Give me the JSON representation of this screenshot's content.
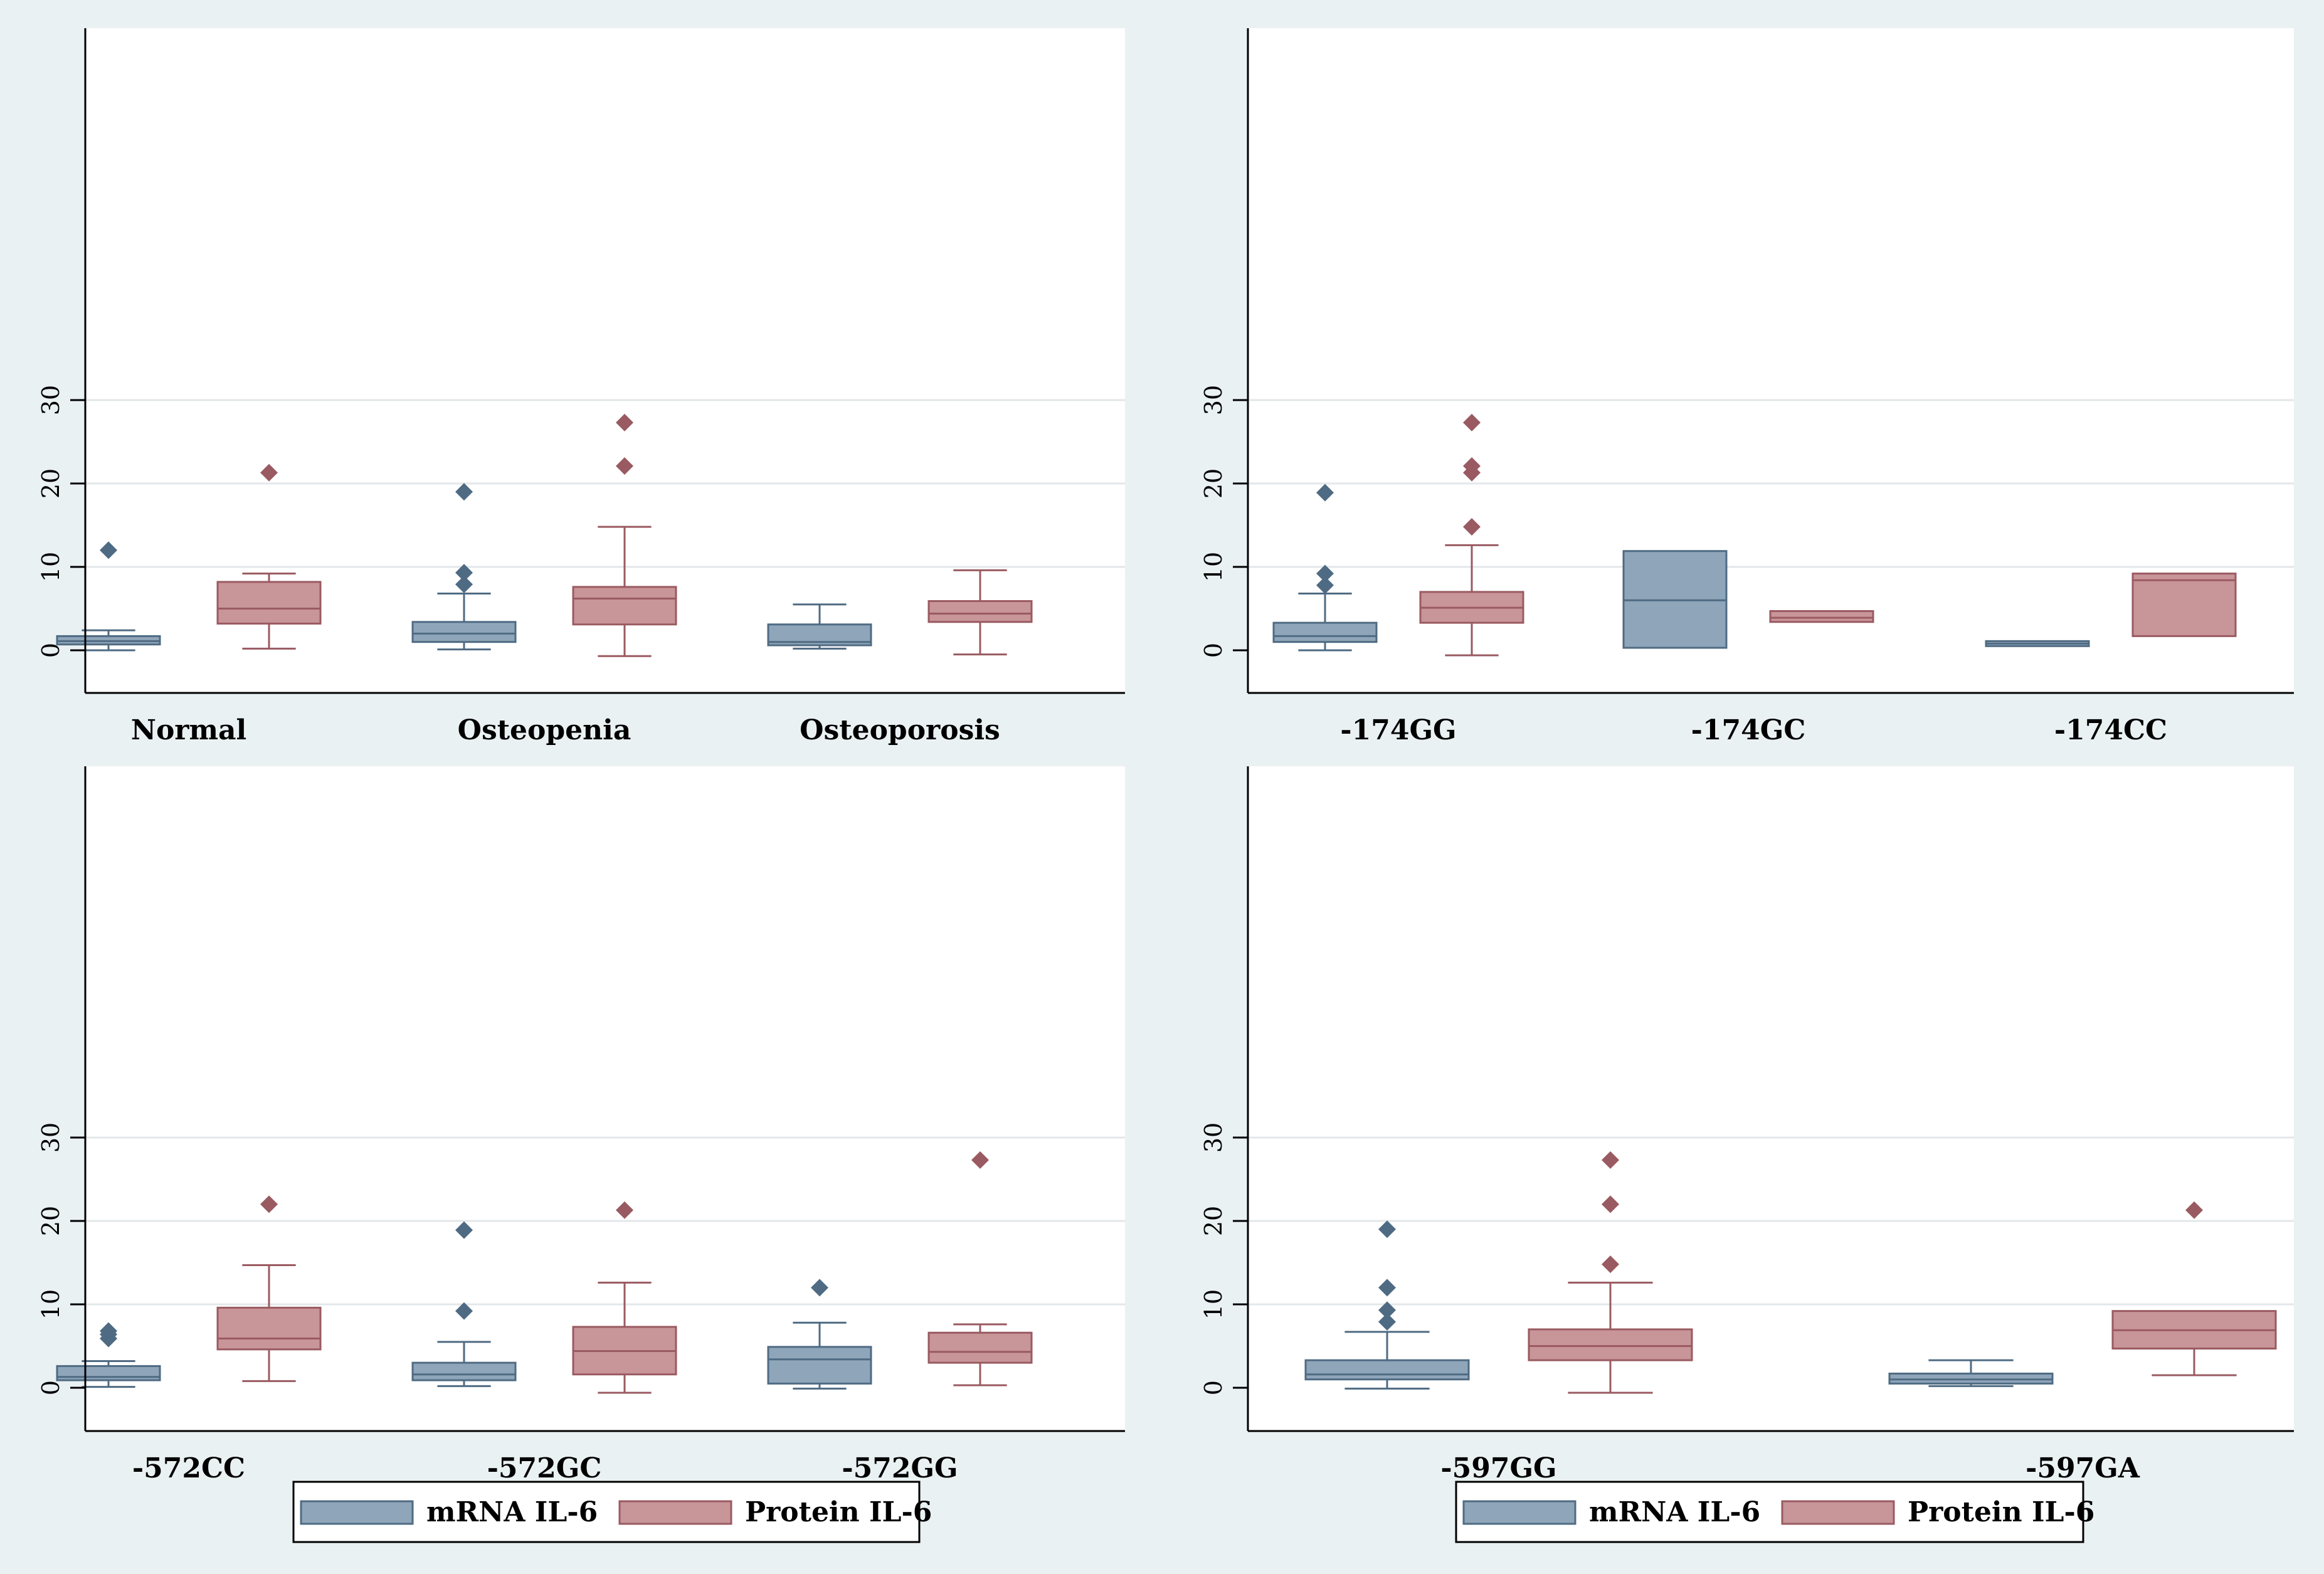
{
  "colors": {
    "background": "#eaf1f3",
    "panel": "#ffffff",
    "grid": "#e3e7ea",
    "mrna_fill": "#8fa5b9",
    "mrna_line": "#4f6b83",
    "protein_fill": "#c89599",
    "protein_line": "#9a5a61"
  },
  "chart_data": [
    {
      "type": "box",
      "ylim": [
        -2,
        32
      ],
      "yticks": [
        "0",
        "10",
        "20",
        "30"
      ],
      "legend": "none",
      "grid": true,
      "categories": [
        "Normal",
        "Osteopenia",
        "Osteoporosis"
      ],
      "series": [
        {
          "name": "mRNA IL-6",
          "stats": [
            {
              "whisker_low": 0.0,
              "q1": 0.7,
              "median": 1.1,
              "q3": 1.7,
              "whisker_high": 2.4,
              "outliers": [
                12.0
              ]
            },
            {
              "whisker_low": 0.1,
              "q1": 1.0,
              "median": 2.0,
              "q3": 3.4,
              "whisker_high": 6.8,
              "outliers": [
                7.9,
                9.3,
                19.0
              ]
            },
            {
              "whisker_low": 0.2,
              "q1": 0.6,
              "median": 1.0,
              "q3": 3.1,
              "whisker_high": 5.5,
              "outliers": []
            }
          ]
        },
        {
          "name": "Protein IL-6",
          "stats": [
            {
              "whisker_low": 0.2,
              "q1": 3.2,
              "median": 5.0,
              "q3": 8.2,
              "whisker_high": 9.2,
              "outliers": [
                21.3
              ]
            },
            {
              "whisker_low": -0.7,
              "q1": 3.1,
              "median": 6.2,
              "q3": 7.6,
              "whisker_high": 14.8,
              "outliers": [
                22.1,
                27.3
              ]
            },
            {
              "whisker_low": -0.5,
              "q1": 3.4,
              "median": 4.4,
              "q3": 5.9,
              "whisker_high": 9.6,
              "outliers": []
            }
          ]
        }
      ]
    },
    {
      "type": "box",
      "ylim": [
        -2,
        32
      ],
      "yticks": [
        "0",
        "10",
        "20",
        "30"
      ],
      "legend": "none",
      "grid": true,
      "categories": [
        "-174GG",
        "-174GC",
        "-174CC"
      ],
      "series": [
        {
          "name": "mRNA IL-6",
          "stats": [
            {
              "whisker_low": 0.0,
              "q1": 1.0,
              "median": 1.7,
              "q3": 3.3,
              "whisker_high": 6.8,
              "outliers": [
                7.8,
                9.2,
                18.9
              ]
            },
            {
              "whisker_low": 0.3,
              "q1": 0.3,
              "median": 6.0,
              "q3": 11.9,
              "whisker_high": 11.9,
              "outliers": []
            },
            {
              "whisker_low": 0.5,
              "q1": 0.5,
              "median": 0.8,
              "q3": 1.1,
              "whisker_high": 1.1,
              "outliers": []
            }
          ]
        },
        {
          "name": "Protein IL-6",
          "stats": [
            {
              "whisker_low": -0.6,
              "q1": 3.3,
              "median": 5.1,
              "q3": 7.0,
              "whisker_high": 12.6,
              "outliers": [
                14.8,
                21.3,
                22.1,
                27.3
              ]
            },
            {
              "whisker_low": 3.4,
              "q1": 3.4,
              "median": 3.9,
              "q3": 4.7,
              "whisker_high": 4.7,
              "outliers": []
            },
            {
              "whisker_low": 1.7,
              "q1": 1.7,
              "median": 8.4,
              "q3": 9.2,
              "whisker_high": 9.2,
              "outliers": []
            }
          ]
        }
      ]
    },
    {
      "type": "box",
      "ylim": [
        -2,
        32
      ],
      "yticks": [
        "0",
        "10",
        "20",
        "30"
      ],
      "legend": "bottom",
      "grid": true,
      "categories": [
        "-572CC",
        "-572GC",
        "-572GG"
      ],
      "legend_labels": [
        "mRNA IL-6",
        "Protein IL-6"
      ],
      "series": [
        {
          "name": "mRNA IL-6",
          "stats": [
            {
              "whisker_low": 0.1,
              "q1": 0.9,
              "median": 1.3,
              "q3": 2.6,
              "whisker_high": 3.2,
              "outliers": [
                5.9,
                6.4,
                6.8
              ]
            },
            {
              "whisker_low": 0.2,
              "q1": 0.9,
              "median": 1.6,
              "q3": 3.0,
              "whisker_high": 5.5,
              "outliers": [
                9.2,
                18.9
              ]
            },
            {
              "whisker_low": -0.1,
              "q1": 0.5,
              "median": 3.4,
              "q3": 4.9,
              "whisker_high": 7.8,
              "outliers": [
                12.0
              ]
            }
          ]
        },
        {
          "name": "Protein IL-6",
          "stats": [
            {
              "whisker_low": 0.8,
              "q1": 4.6,
              "median": 5.9,
              "q3": 9.6,
              "whisker_high": 14.7,
              "outliers": [
                22.0
              ]
            },
            {
              "whisker_low": -0.6,
              "q1": 1.6,
              "median": 4.4,
              "q3": 7.3,
              "whisker_high": 12.6,
              "outliers": [
                21.3
              ]
            },
            {
              "whisker_low": 0.3,
              "q1": 3.0,
              "median": 4.3,
              "q3": 6.6,
              "whisker_high": 7.6,
              "outliers": [
                27.3
              ]
            }
          ]
        }
      ]
    },
    {
      "type": "box",
      "ylim": [
        -2,
        32
      ],
      "yticks": [
        "0",
        "10",
        "20",
        "30"
      ],
      "legend": "bottom",
      "grid": true,
      "categories": [
        "-597GG",
        "-597GA"
      ],
      "legend_labels": [
        "mRNA IL-6",
        "Protein IL-6"
      ],
      "series": [
        {
          "name": "mRNA IL-6",
          "stats": [
            {
              "whisker_low": -0.1,
              "q1": 1.0,
              "median": 1.6,
              "q3": 3.3,
              "whisker_high": 6.7,
              "outliers": [
                7.9,
                9.3,
                12.0,
                19.0
              ]
            },
            {
              "whisker_low": 0.2,
              "q1": 0.5,
              "median": 1.0,
              "q3": 1.7,
              "whisker_high": 3.3,
              "outliers": []
            }
          ]
        },
        {
          "name": "Protein IL-6",
          "stats": [
            {
              "whisker_low": -0.6,
              "q1": 3.3,
              "median": 5.0,
              "q3": 7.0,
              "whisker_high": 12.6,
              "outliers": [
                14.8,
                22.0,
                27.3
              ]
            },
            {
              "whisker_low": 1.5,
              "q1": 4.7,
              "median": 6.9,
              "q3": 9.2,
              "whisker_high": 9.2,
              "outliers": [
                21.3
              ]
            }
          ]
        }
      ]
    }
  ]
}
